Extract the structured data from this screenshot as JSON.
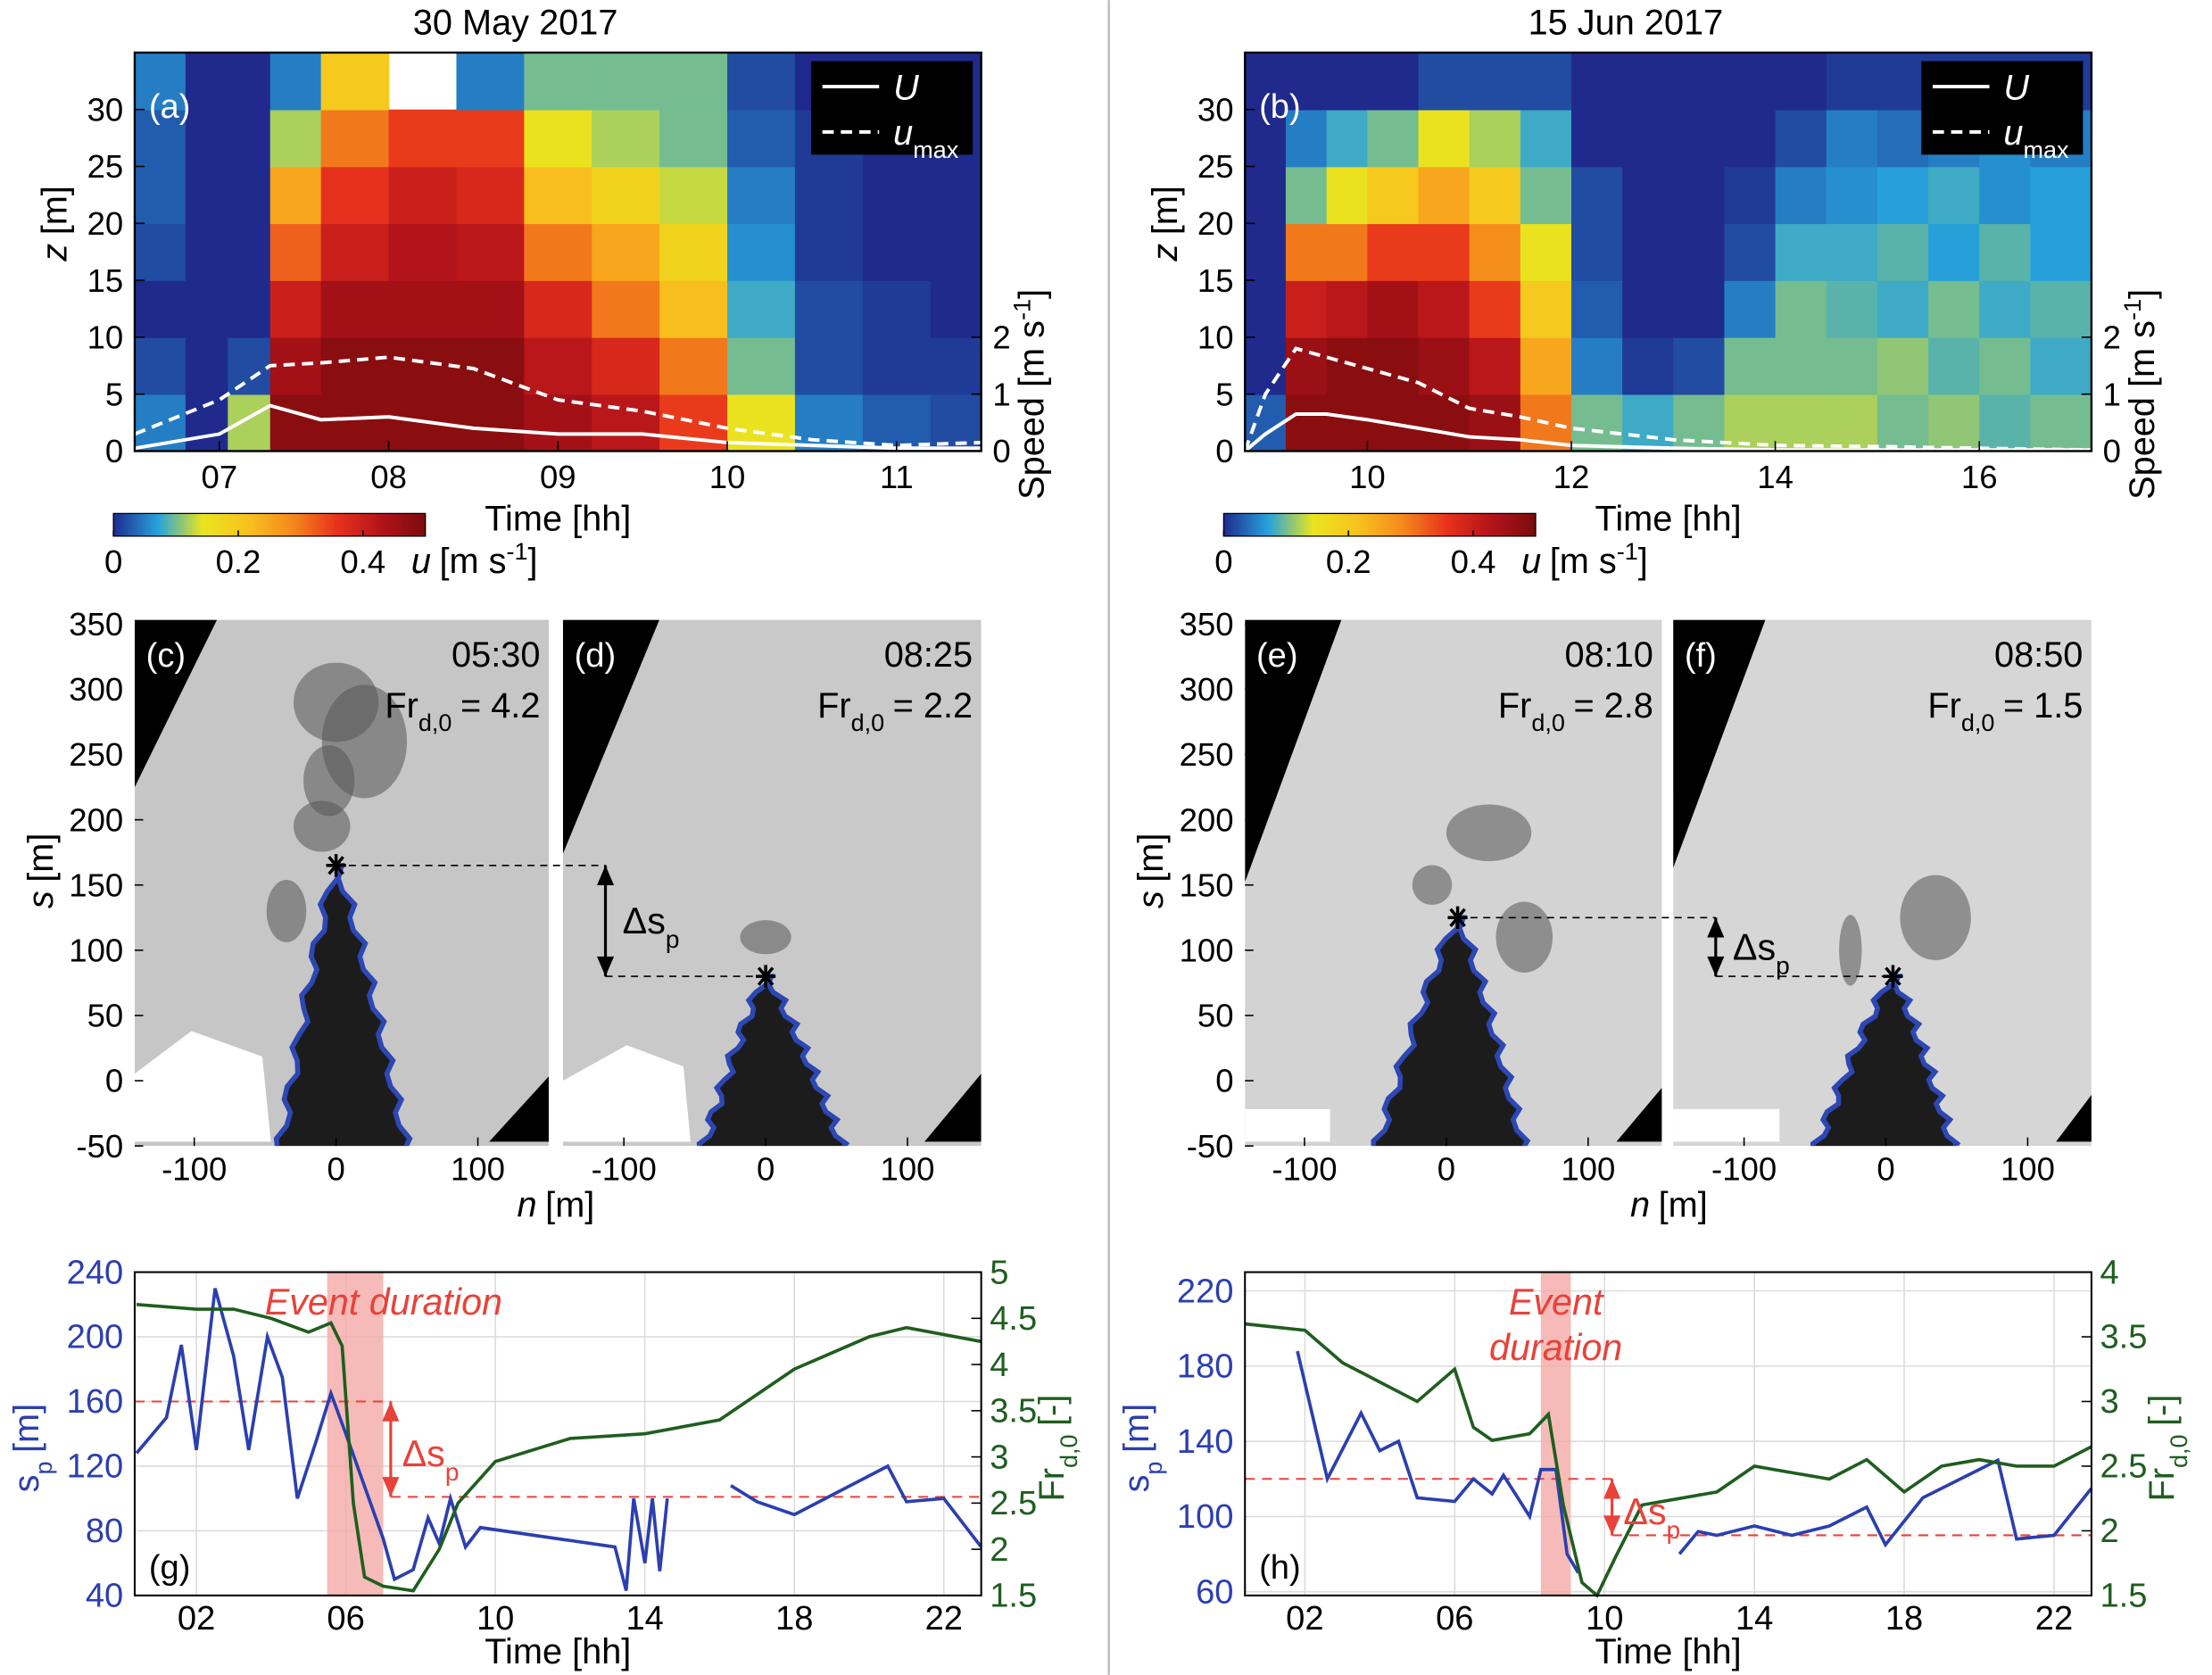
{
  "chart_data": [
    {
      "type": "heatmap",
      "panel": "(a)",
      "title": "30 May 2017",
      "x_edges": [
        6.5,
        6.8,
        7.05,
        7.3,
        7.6,
        8.0,
        8.4,
        8.8,
        9.2,
        9.6,
        10.0,
        10.4,
        10.8,
        11.2,
        11.5
      ],
      "z_edges": [
        0,
        5,
        10,
        15,
        20,
        25,
        30,
        35
      ],
      "values": [
        [
          0.05,
          0.02,
          0,
          0.02,
          0.03,
          0.03,
          0.05
        ],
        [
          0,
          0,
          0,
          0,
          0,
          0,
          0
        ],
        [
          0.12,
          0.02,
          0,
          0,
          0,
          0,
          0
        ],
        [
          0.48,
          0.45,
          0.4,
          0.32,
          0.25,
          0.12,
          0.05
        ],
        [
          0.48,
          0.48,
          0.45,
          0.4,
          0.36,
          0.3,
          0.2
        ],
        [
          0.48,
          0.48,
          0.45,
          0.43,
          0.4,
          0.35,
          null
        ],
        [
          0.48,
          0.48,
          0.45,
          0.42,
          0.38,
          0.35,
          0.05
        ],
        [
          0.45,
          0.42,
          0.38,
          0.3,
          0.22,
          0.15,
          0.1
        ],
        [
          0.42,
          0.38,
          0.3,
          0.25,
          0.18,
          0.12,
          0.1
        ],
        [
          0.35,
          0.3,
          0.22,
          0.18,
          0.13,
          0.1,
          0.1
        ],
        [
          0.15,
          0.1,
          0.08,
          0.06,
          0.05,
          0.03,
          0.02
        ],
        [
          0.05,
          0.02,
          0.02,
          0.01,
          0.01,
          0.01,
          0
        ],
        [
          0.03,
          0.01,
          0.01,
          0,
          0,
          0,
          0
        ],
        [
          0.02,
          0.01,
          0,
          0,
          0,
          0,
          0
        ]
      ],
      "xlim": [
        6.5,
        11.5
      ],
      "xticks": [
        {
          "value": 7,
          "label": "07"
        },
        {
          "value": 8,
          "label": "08"
        },
        {
          "value": 9,
          "label": "09"
        },
        10,
        11
      ],
      "ylim": [
        0,
        35
      ],
      "yticks": [
        0,
        5,
        10,
        15,
        20,
        25,
        30
      ],
      "y2lim": [
        0,
        7
      ],
      "y2ticks": [
        0,
        1,
        2
      ],
      "xlabel": "Time [hh]",
      "ylabel": {
        "var": "z",
        "unit": "[m]"
      },
      "y2label": {
        "text": "Speed [m s",
        "sup": "-1",
        "end": "]"
      },
      "colormap": [
        "#1f2a8c",
        "#27a2dc",
        "#e9e51f",
        "#f8c21e",
        "#f58a1c",
        "#e8321c",
        "#b4131a",
        "#7a0c0c"
      ],
      "clim": [
        0,
        0.5
      ],
      "cticks": [
        0,
        0.2,
        0.4
      ],
      "clabel": {
        "var": "u",
        "unit": "[m s",
        "sup": "-1",
        "end": "]"
      },
      "legend": "upper right",
      "series": [
        {
          "name": "U",
          "color": "#ffffff",
          "dash": false,
          "axis": "y2",
          "x": [
            6.5,
            7.0,
            7.3,
            7.6,
            8.0,
            8.5,
            9.0,
            9.5,
            10,
            10.5,
            11,
            11.5
          ],
          "values": [
            0.05,
            0.3,
            0.8,
            0.55,
            0.6,
            0.4,
            0.3,
            0.3,
            0.15,
            0.1,
            0.05,
            0.05
          ]
        },
        {
          "name": "u",
          "sub": "max",
          "color": "#ffffff",
          "dash": true,
          "axis": "y2",
          "x": [
            6.5,
            7.0,
            7.3,
            7.6,
            8.0,
            8.5,
            9.0,
            9.5,
            10,
            10.5,
            11,
            11.5
          ],
          "values": [
            0.3,
            0.9,
            1.5,
            1.55,
            1.65,
            1.45,
            0.9,
            0.7,
            0.4,
            0.2,
            0.1,
            0.15
          ]
        }
      ]
    },
    {
      "type": "heatmap",
      "panel": "(b)",
      "title": "15 Jun 2017",
      "x_edges": [
        8.8,
        9.2,
        9.6,
        10.0,
        10.5,
        11.0,
        11.5,
        12.0,
        12.5,
        13.0,
        13.5,
        14.0,
        14.5,
        15.0,
        15.5,
        16.0,
        16.5,
        17.1
      ],
      "z_edges": [
        0,
        5,
        10,
        15,
        20,
        25,
        30,
        35
      ],
      "values": [
        [
          0.03,
          0,
          0,
          0,
          0,
          0,
          0
        ],
        [
          0.48,
          0.46,
          0.4,
          0.3,
          0.1,
          0.05,
          0
        ],
        [
          0.48,
          0.48,
          0.42,
          0.3,
          0.15,
          0.08,
          0
        ],
        [
          0.48,
          0.48,
          0.45,
          0.35,
          0.2,
          0.1,
          0
        ],
        [
          0.48,
          0.46,
          0.42,
          0.35,
          0.25,
          0.15,
          0.02
        ],
        [
          0.46,
          0.42,
          0.35,
          0.28,
          0.2,
          0.12,
          0.02
        ],
        [
          0.3,
          0.25,
          0.2,
          0.15,
          0.1,
          0.08,
          0.02
        ],
        [
          0.1,
          0.05,
          0.03,
          0.02,
          0.02,
          0,
          0
        ],
        [
          0.08,
          0.01,
          0,
          0,
          0,
          0,
          0
        ],
        [
          0.1,
          0.02,
          0,
          0,
          0,
          0,
          0
        ],
        [
          0.12,
          0.1,
          0.05,
          0.02,
          0.01,
          0,
          0
        ],
        [
          0.12,
          0.1,
          0.1,
          0.08,
          0.05,
          0.02,
          0
        ],
        [
          0.12,
          0.1,
          0.09,
          0.08,
          0.06,
          0.05,
          0.01
        ],
        [
          0.1,
          0.11,
          0.08,
          0.09,
          0.07,
          0.04,
          0.01
        ],
        [
          0.11,
          0.09,
          0.1,
          0.07,
          0.08,
          0.05,
          0.01
        ],
        [
          0.09,
          0.1,
          0.08,
          0.09,
          0.06,
          0.06,
          0.01
        ],
        [
          0.1,
          0.08,
          0.09,
          0.07,
          0.07,
          0.05,
          0.01
        ]
      ],
      "xlim": [
        8.8,
        17.1
      ],
      "xticks": [
        10,
        12,
        14,
        16
      ],
      "ylim": [
        0,
        35
      ],
      "yticks": [
        0,
        5,
        10,
        15,
        20,
        25,
        30
      ],
      "y2lim": [
        0,
        7
      ],
      "y2ticks": [
        0,
        1,
        2
      ],
      "xlabel": "Time [hh]",
      "ylabel": {
        "var": "z",
        "unit": "[m]"
      },
      "y2label": {
        "text": "Speed [m s",
        "sup": "-1",
        "end": "]"
      },
      "colormap": [
        "#1f2a8c",
        "#27a2dc",
        "#e9e51f",
        "#f8c21e",
        "#f58a1c",
        "#e8321c",
        "#b4131a",
        "#7a0c0c"
      ],
      "clim": [
        0,
        0.5
      ],
      "cticks": [
        0,
        0.2,
        0.4
      ],
      "clabel": {
        "var": "u",
        "unit": "[m s",
        "sup": "-1",
        "end": "]"
      },
      "legend": "upper right",
      "series": [
        {
          "name": "U",
          "color": "#ffffff",
          "dash": false,
          "axis": "y2",
          "x": [
            8.8,
            9.0,
            9.3,
            9.6,
            10,
            10.5,
            11,
            11.5,
            12,
            13,
            14,
            15,
            16,
            17.1
          ],
          "values": [
            0,
            0.3,
            0.65,
            0.65,
            0.55,
            0.4,
            0.25,
            0.2,
            0.1,
            0.05,
            0.02,
            0.02,
            0.02,
            0.02
          ]
        },
        {
          "name": "u",
          "sub": "max",
          "color": "#ffffff",
          "dash": true,
          "axis": "y2",
          "x": [
            8.8,
            9.0,
            9.3,
            9.6,
            10,
            10.5,
            11,
            11.5,
            12,
            13,
            14,
            15,
            16,
            17.1
          ],
          "values": [
            0,
            1.0,
            1.8,
            1.65,
            1.45,
            1.2,
            0.75,
            0.6,
            0.4,
            0.2,
            0.1,
            0.08,
            0.05,
            0.02
          ]
        }
      ]
    },
    {
      "type": "image",
      "panel": "(c)",
      "time": "05:30",
      "fr": {
        "base": "Fr",
        "sub": "d,0",
        "text": "= 4.2"
      },
      "xlim": [
        -142,
        150
      ],
      "ylim": [
        -50,
        350
      ],
      "xticks": [
        -100,
        0,
        100
      ],
      "yticks": [
        -50,
        0,
        50,
        100,
        150,
        200,
        250,
        300,
        350
      ],
      "xlabel": {
        "var": "n",
        "unit": "[m]"
      },
      "ylabel": {
        "var": "s",
        "unit": "[m]"
      },
      "tip": {
        "n": 0,
        "s": 165
      }
    },
    {
      "type": "image",
      "panel": "(d)",
      "time": "08:25",
      "fr": {
        "base": "Fr",
        "sub": "d,0",
        "text": "= 2.2"
      },
      "xlim": [
        -143,
        152
      ],
      "ylim": [
        -50,
        350
      ],
      "xticks": [
        -100,
        0,
        100
      ],
      "tip": {
        "n": 0,
        "s": 80
      },
      "delta": {
        "text": "Δs",
        "sub": "p"
      }
    },
    {
      "type": "image",
      "panel": "(e)",
      "time": "08:10",
      "fr": {
        "base": "Fr",
        "sub": "d,0",
        "text": "= 2.8"
      },
      "xlim": [
        -142,
        152
      ],
      "ylim": [
        -50,
        350
      ],
      "xticks": [
        -100,
        0,
        100
      ],
      "yticks": [
        -50,
        0,
        50,
        100,
        150,
        200,
        250,
        300,
        350
      ],
      "xlabel": {
        "var": "n",
        "unit": "[m]"
      },
      "ylabel": {
        "var": "s",
        "unit": "[m]"
      },
      "tip": {
        "n": 8,
        "s": 125
      }
    },
    {
      "type": "image",
      "panel": "(f)",
      "time": "08:50",
      "fr": {
        "base": "Fr",
        "sub": "d,0",
        "text": "= 1.5"
      },
      "xlim": [
        -150,
        145
      ],
      "ylim": [
        -50,
        350
      ],
      "xticks": [
        -100,
        0,
        100
      ],
      "tip": {
        "n": 5,
        "s": 80
      },
      "delta": {
        "text": "Δs",
        "sub": "p"
      }
    },
    {
      "type": "line",
      "panel": "(g)",
      "xlim": [
        0.35,
        23
      ],
      "xticks": [
        {
          "value": 2,
          "label": "02"
        },
        {
          "value": 6,
          "label": "06"
        },
        10,
        14,
        18,
        22
      ],
      "ylim": [
        40,
        240
      ],
      "yticks": [
        40,
        80,
        120,
        160,
        200,
        240
      ],
      "y2lim": [
        1.5,
        5
      ],
      "y2ticks": [
        1.5,
        2,
        2.5,
        3,
        3.5,
        4,
        4.5,
        5
      ],
      "xlabel": "Time [hh]",
      "ylabel": {
        "var": "s",
        "sub": "p",
        "unit": "[m]"
      },
      "y2label": {
        "var": "Fr",
        "sub": "d,0",
        "unit": "[-]"
      },
      "grid": true,
      "event": {
        "xlim": [
          5.5,
          7.0
        ],
        "text": [
          "Event duration"
        ],
        "color": "#f4aaa6"
      },
      "ref_lines": [
        {
          "value": 160,
          "x": [
            0.35,
            7.2
          ]
        },
        {
          "value": 101,
          "x": [
            7.2,
            23
          ]
        }
      ],
      "ref_color": "#e8423a",
      "delta": {
        "text": "Δs",
        "sub": "p"
      },
      "series": [
        {
          "name": "s",
          "color": "#2b3fb0",
          "x": [
            0.4,
            1.2,
            1.6,
            2.0,
            2.5,
            3.0,
            3.4,
            3.9,
            4.3,
            4.7,
            5.2,
            5.6,
            6.0,
            7.0,
            7.3,
            7.8,
            8.2,
            8.5,
            8.8,
            9.2,
            9.6,
            13.2,
            13.5,
            13.7,
            14.0,
            14.2,
            14.4,
            14.6,
            15.5,
            16.3,
            17,
            18,
            20.5,
            21,
            22,
            23
          ],
          "values": [
            128,
            150,
            195,
            130,
            230,
            188,
            130,
            200,
            175,
            100,
            135,
            165,
            140,
            75,
            50,
            56,
            88,
            72,
            100,
            70,
            82,
            70,
            43,
            100,
            60,
            100,
            55,
            100,
            null,
            108,
            98,
            90,
            120,
            98,
            100,
            70
          ]
        },
        {
          "name": "Fr",
          "color": "#1f5e1f",
          "axis": "y2",
          "x": [
            0.4,
            2,
            3,
            4,
            5,
            5.6,
            5.9,
            6.2,
            6.5,
            7,
            7.8,
            8.5,
            9,
            10,
            12,
            14,
            16,
            18,
            20,
            21,
            23
          ],
          "values": [
            4.65,
            4.6,
            4.6,
            4.5,
            4.35,
            4.45,
            4.2,
            2.5,
            1.7,
            1.6,
            1.55,
            2.0,
            2.5,
            2.95,
            3.2,
            3.25,
            3.4,
            3.95,
            4.3,
            4.4,
            4.25
          ]
        }
      ]
    },
    {
      "type": "line",
      "panel": "(h)",
      "xlim": [
        0.4,
        23
      ],
      "xticks": [
        {
          "value": 2,
          "label": "02"
        },
        {
          "value": 6,
          "label": "06"
        },
        10,
        14,
        18,
        22
      ],
      "ylim": [
        58,
        230
      ],
      "yticks": [
        60,
        100,
        140,
        180,
        220
      ],
      "y2lim": [
        1.5,
        4
      ],
      "y2ticks": [
        1.5,
        2,
        2.5,
        3,
        3.5,
        4
      ],
      "xlabel": "Time [hh]",
      "ylabel": {
        "var": "s",
        "sub": "p",
        "unit": "[m]"
      },
      "y2label": {
        "var": "Fr",
        "sub": "d,0",
        "unit": "[-]"
      },
      "grid": true,
      "event": {
        "xlim": [
          8.3,
          9.1
        ],
        "text": [
          "Event",
          "duration"
        ],
        "color": "#f4aaa6"
      },
      "ref_lines": [
        {
          "value": 120,
          "x": [
            0.4,
            10.2
          ]
        },
        {
          "value": 90,
          "x": [
            10.2,
            23
          ]
        }
      ],
      "ref_color": "#e8423a",
      "delta": {
        "text": "Δs",
        "sub": "p"
      },
      "series": [
        {
          "name": "s",
          "color": "#2b3fb0",
          "x": [
            1.8,
            2.6,
            3.5,
            4,
            4.5,
            5,
            6,
            6.5,
            7,
            7.3,
            8,
            8.3,
            8.7,
            9,
            9.3,
            10.5,
            12,
            12.5,
            13,
            14,
            15,
            16,
            17,
            17.5,
            18.5,
            20.5,
            21,
            22,
            23
          ],
          "values": [
            188,
            120,
            155,
            135,
            140,
            110,
            108,
            120,
            112,
            122,
            100,
            125,
            125,
            80,
            70,
            null,
            80,
            92,
            90,
            95,
            90,
            95,
            105,
            85,
            110,
            130,
            88,
            90,
            115
          ]
        },
        {
          "name": "Fr",
          "color": "#1f5e1f",
          "axis": "y2",
          "x": [
            0.4,
            2,
            3,
            4,
            5,
            6,
            6.5,
            7,
            8,
            8.5,
            8.9,
            9.4,
            9.8,
            10.3,
            11,
            12,
            13,
            14,
            15,
            16,
            17,
            18,
            19,
            20,
            21,
            22,
            23
          ],
          "values": [
            3.6,
            3.55,
            3.3,
            3.15,
            3.0,
            3.25,
            2.8,
            2.7,
            2.75,
            2.9,
            2.2,
            1.6,
            1.5,
            1.8,
            2.2,
            2.25,
            2.3,
            2.5,
            2.45,
            2.4,
            2.55,
            2.3,
            2.5,
            2.55,
            2.5,
            2.5,
            2.65
          ]
        }
      ]
    }
  ]
}
